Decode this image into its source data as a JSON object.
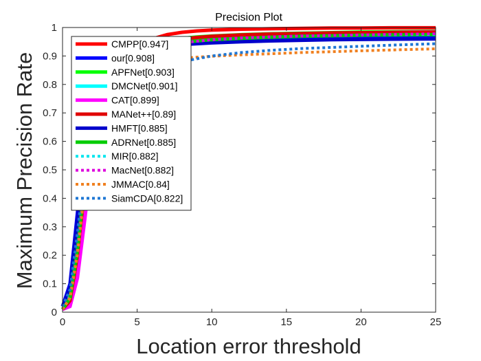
{
  "chart_data": {
    "type": "line",
    "title": "Precision Plot",
    "xlabel": "Location error threshold",
    "ylabel": "Maximum Precision Rate",
    "xlim": [
      0,
      25
    ],
    "ylim": [
      0,
      1
    ],
    "xticks": [
      "0",
      "5",
      "10",
      "15",
      "20",
      "25"
    ],
    "yticks": [
      "0",
      "0.1",
      "0.2",
      "0.3",
      "0.4",
      "0.5",
      "0.6",
      "0.7",
      "0.8",
      "0.9",
      "1"
    ],
    "legend_position": "top-left",
    "grid": false,
    "x": [
      0,
      0.5,
      1,
      1.5,
      2,
      2.5,
      3,
      4,
      5,
      6,
      7,
      8,
      9,
      10,
      12,
      14,
      16,
      18,
      20,
      22,
      25
    ],
    "series": [
      {
        "name": "CMPP[0.947]",
        "color": "#ff0000",
        "style": "solid",
        "values": [
          0.01,
          0.03,
          0.15,
          0.4,
          0.6,
          0.72,
          0.8,
          0.88,
          0.93,
          0.96,
          0.975,
          0.983,
          0.988,
          0.991,
          0.994,
          0.996,
          0.997,
          0.998,
          0.998,
          0.999,
          0.999
        ]
      },
      {
        "name": "our[0.908]",
        "color": "#0000ff",
        "style": "solid",
        "values": [
          0.02,
          0.1,
          0.35,
          0.6,
          0.75,
          0.83,
          0.88,
          0.915,
          0.93,
          0.94,
          0.945,
          0.948,
          0.95,
          0.952,
          0.955,
          0.958,
          0.96,
          0.962,
          0.963,
          0.964,
          0.965
        ]
      },
      {
        "name": "APFNet[0.903]",
        "color": "#00ff00",
        "style": "solid",
        "values": [
          0.01,
          0.05,
          0.22,
          0.48,
          0.66,
          0.77,
          0.84,
          0.9,
          0.93,
          0.945,
          0.955,
          0.962,
          0.967,
          0.97,
          0.975,
          0.978,
          0.98,
          0.982,
          0.984,
          0.985,
          0.986
        ]
      },
      {
        "name": "DMCNet[0.901]",
        "color": "#00ffff",
        "style": "solid",
        "values": [
          0.01,
          0.05,
          0.2,
          0.46,
          0.65,
          0.76,
          0.83,
          0.89,
          0.925,
          0.94,
          0.95,
          0.957,
          0.962,
          0.966,
          0.971,
          0.974,
          0.977,
          0.979,
          0.98,
          0.981,
          0.982
        ]
      },
      {
        "name": "CAT[0.899]",
        "color": "#ff00ff",
        "style": "solid",
        "values": [
          0.01,
          0.02,
          0.12,
          0.33,
          0.55,
          0.7,
          0.79,
          0.87,
          0.91,
          0.935,
          0.948,
          0.956,
          0.961,
          0.965,
          0.97,
          0.974,
          0.977,
          0.979,
          0.981,
          0.983,
          0.985
        ]
      },
      {
        "name": "MANet++[0.89]",
        "color": "#e00000",
        "style": "solid",
        "values": [
          0.01,
          0.04,
          0.2,
          0.45,
          0.64,
          0.75,
          0.82,
          0.885,
          0.92,
          0.94,
          0.952,
          0.96,
          0.965,
          0.969,
          0.974,
          0.977,
          0.979,
          0.981,
          0.982,
          0.983,
          0.984
        ]
      },
      {
        "name": "HMFT[0.885]",
        "color": "#0000cc",
        "style": "solid",
        "values": [
          0.02,
          0.09,
          0.33,
          0.58,
          0.73,
          0.81,
          0.86,
          0.9,
          0.92,
          0.93,
          0.936,
          0.94,
          0.943,
          0.946,
          0.95,
          0.953,
          0.955,
          0.957,
          0.958,
          0.959,
          0.96
        ]
      },
      {
        "name": "ADRNet[0.885]",
        "color": "#00cc00",
        "style": "solid",
        "values": [
          0.01,
          0.05,
          0.22,
          0.47,
          0.65,
          0.76,
          0.82,
          0.88,
          0.91,
          0.928,
          0.94,
          0.947,
          0.953,
          0.957,
          0.962,
          0.966,
          0.969,
          0.971,
          0.973,
          0.974,
          0.975
        ]
      },
      {
        "name": "MIR[0.882]",
        "color": "#00e5ee",
        "style": "dotted",
        "values": [
          0.01,
          0.05,
          0.21,
          0.46,
          0.64,
          0.75,
          0.81,
          0.87,
          0.905,
          0.925,
          0.938,
          0.946,
          0.952,
          0.957,
          0.963,
          0.967,
          0.97,
          0.972,
          0.974,
          0.975,
          0.976
        ]
      },
      {
        "name": "MacNet[0.882]",
        "color": "#dd00dd",
        "style": "dotted",
        "values": [
          0.01,
          0.05,
          0.21,
          0.46,
          0.64,
          0.75,
          0.81,
          0.87,
          0.905,
          0.925,
          0.938,
          0.946,
          0.952,
          0.957,
          0.963,
          0.967,
          0.97,
          0.972,
          0.974,
          0.976,
          0.978
        ]
      },
      {
        "name": "JMMAC[0.84]",
        "color": "#f08020",
        "style": "dotted",
        "values": [
          0.01,
          0.05,
          0.2,
          0.44,
          0.61,
          0.72,
          0.78,
          0.84,
          0.87,
          0.882,
          0.888,
          0.892,
          0.896,
          0.899,
          0.904,
          0.908,
          0.912,
          0.915,
          0.918,
          0.921,
          0.925
        ]
      },
      {
        "name": "SiamCDA[0.822]",
        "color": "#1f77d4",
        "style": "dotted",
        "values": [
          0.02,
          0.08,
          0.28,
          0.52,
          0.66,
          0.75,
          0.8,
          0.85,
          0.87,
          0.875,
          0.877,
          0.88,
          0.89,
          0.9,
          0.912,
          0.92,
          0.926,
          0.93,
          0.934,
          0.938,
          0.943
        ]
      }
    ]
  }
}
